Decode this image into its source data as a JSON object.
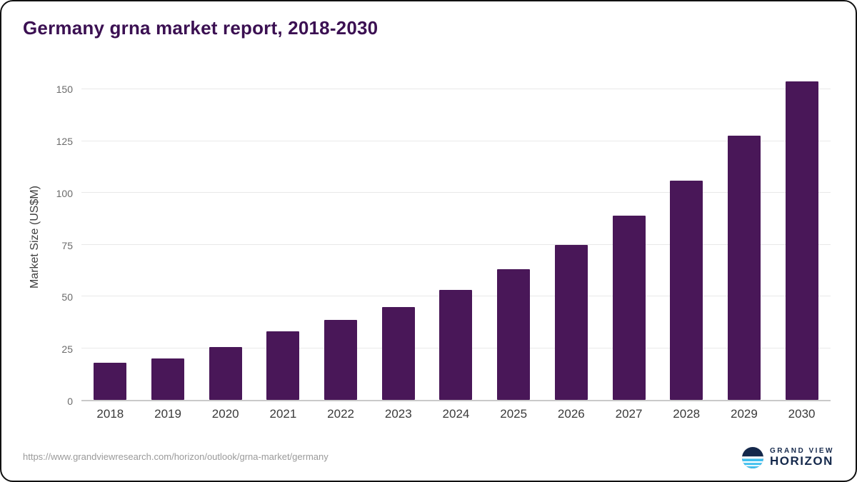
{
  "title": "Germany grna market report, 2018-2030",
  "chart_data": {
    "type": "bar",
    "categories": [
      "2018",
      "2019",
      "2020",
      "2021",
      "2022",
      "2023",
      "2024",
      "2025",
      "2026",
      "2027",
      "2028",
      "2029",
      "2030"
    ],
    "values": [
      18,
      20,
      25.5,
      33,
      38.5,
      45,
      53,
      63,
      75,
      89,
      106,
      127.5,
      154
    ],
    "title": "Germany grna market report, 2018-2030",
    "xlabel": "",
    "ylabel": "Market Size (US$M)",
    "ylim": [
      0,
      158
    ],
    "yticks": [
      0,
      25,
      50,
      75,
      100,
      125,
      150
    ],
    "grid": true,
    "legend": "none",
    "bar_color": "#491758"
  },
  "colors": {
    "bar": "#491758",
    "title_text": "#3b1052",
    "brand_navy": "#14284b",
    "brand_blue": "#41c0ee"
  },
  "footer": {
    "source_url": "https://www.grandviewresearch.com/horizon/outlook/grna-market/germany",
    "logo": {
      "line1": "GRAND VIEW",
      "line2": "HORIZON"
    }
  }
}
